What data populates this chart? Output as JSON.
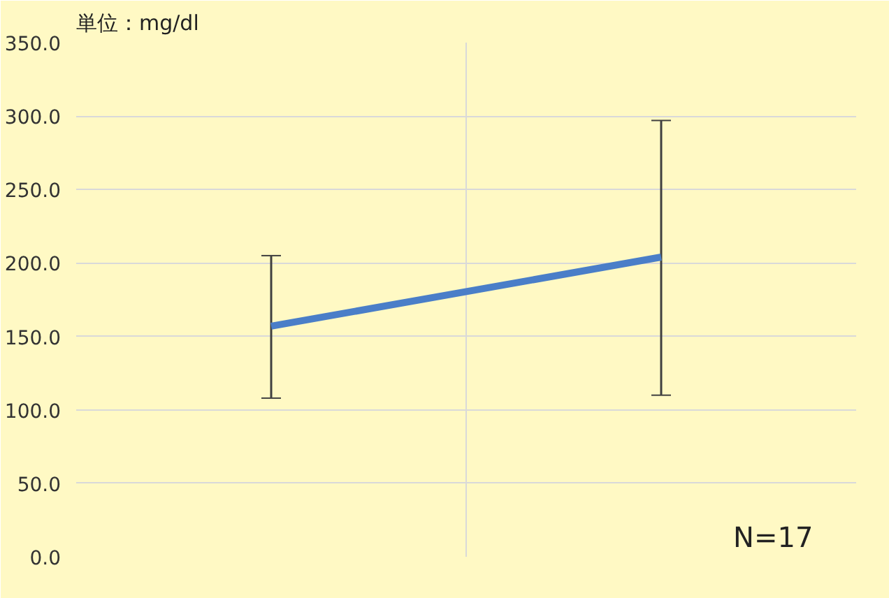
{
  "chart_data": {
    "type": "line",
    "title": "単位：mg/dl",
    "categories": [
      null,
      null
    ],
    "series": [
      {
        "color": "#4a7ec8",
        "values": [
          157,
          204
        ],
        "errors": [
          [
            108,
            205
          ],
          [
            110,
            297
          ]
        ]
      }
    ],
    "ylim": [
      0,
      350
    ],
    "yticks": [
      {
        "value": 0,
        "label": "0.0"
      },
      {
        "value": 50,
        "label": "50.0"
      },
      {
        "value": 100,
        "label": "100.0"
      },
      {
        "value": 150,
        "label": "150.0"
      },
      {
        "value": 200,
        "label": "200.0"
      },
      {
        "value": 250,
        "label": "250.0"
      },
      {
        "value": 300,
        "label": "300.0"
      },
      {
        "value": 350,
        "label": "350.0"
      }
    ],
    "grid": true,
    "tick_labels": "y",
    "marker": "none",
    "line_style": "solid",
    "annotations": [
      "N=17"
    ]
  }
}
